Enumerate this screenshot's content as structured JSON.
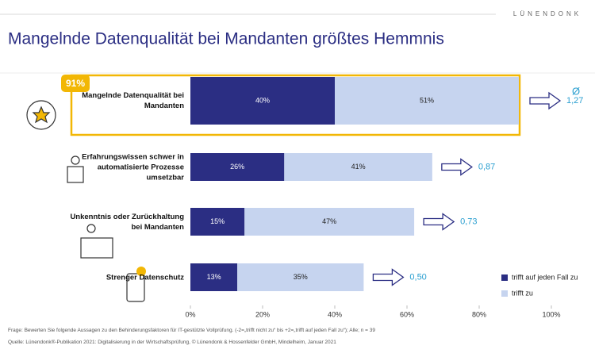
{
  "brand": "LÜNENDONK",
  "chart_data": {
    "type": "stacked-barh",
    "title": "Mangelnde Datenqualität bei Mandanten größtes Hemmnis",
    "categories": [
      "Mangelnde Datenqualität bei Mandanten",
      "Erfahrungswissen schwer in automatisierte Prozesse umsetzbar",
      "Unkenntnis oder Zurückhaltung bei Mandanten",
      "Strenger Datenschutz"
    ],
    "series": [
      {
        "name": "trifft auf jeden Fall zu",
        "color": "#2b2e83",
        "values": [
          40,
          26,
          15,
          13
        ],
        "value_labels": [
          "40%",
          "26%",
          "15%",
          "13%"
        ]
      },
      {
        "name": "trifft zu",
        "color": "#c6d4ef",
        "values": [
          51,
          41,
          47,
          35
        ],
        "value_labels": [
          "51%",
          "41%",
          "47%",
          "35%"
        ]
      }
    ],
    "averages": {
      "label": "Ø",
      "values": [
        1.27,
        0.87,
        0.73,
        0.5
      ],
      "value_labels": [
        "1,27",
        "0,87",
        "0,73",
        "0,50"
      ],
      "color": "#2a9fd0"
    },
    "highlight": {
      "value": 91,
      "label": "91%",
      "color": "#f2b705"
    },
    "xlim": [
      0,
      100
    ],
    "xticks": [
      {
        "value": 0,
        "label": "0%"
      },
      {
        "value": 20,
        "label": "20%"
      },
      {
        "value": 40,
        "label": "40%"
      },
      {
        "value": 60,
        "label": "60%"
      },
      {
        "value": 80,
        "label": "80%"
      },
      {
        "value": 100,
        "label": "100%"
      }
    ],
    "notes": [
      "Frage: Bewerten Sie folgende Aussagen zu den Behinderungsfaktoren für IT-gestützte Vollprüfung. (-2=„trifft nicht zu“ bis +2=„trifft auf jeden Fall zu“); Alle; n = 39",
      "Quelle: Lünendonk®-Publikation 2021: Digitalisierung in der Wirtschaftsprüfung, © Lünendonk & Hossenfelder GmbH, Mindelheim, Januar 2021"
    ]
  }
}
